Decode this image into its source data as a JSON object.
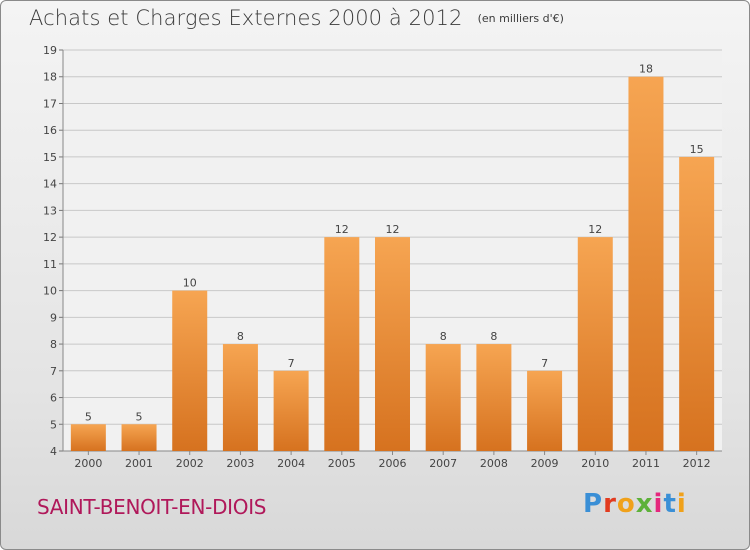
{
  "header": {
    "title": "Achats et Charges Externes 2000 à 2012",
    "unit": "(en milliers d'€)"
  },
  "footer": {
    "commune": "SAINT-BENOIT-EN-DIOIS",
    "brand": "Proxiti"
  },
  "colors": {
    "bar_top": "#f6a552",
    "bar_bottom": "#d6721f",
    "grid": "#c8c8c8",
    "axis_text": "#444444",
    "commune": "#b0185a"
  },
  "chart_data": {
    "type": "bar",
    "title": "Achats et Charges Externes 2000 à 2012",
    "subtitle": "(en milliers d'€)",
    "categories": [
      "2000",
      "2001",
      "2002",
      "2003",
      "2004",
      "2005",
      "2006",
      "2007",
      "2008",
      "2009",
      "2010",
      "2011",
      "2012"
    ],
    "values": [
      5,
      5,
      10,
      8,
      7,
      12,
      12,
      8,
      8,
      7,
      12,
      18,
      15
    ],
    "ylim": [
      4,
      19
    ],
    "yticks": [
      4,
      5,
      6,
      7,
      8,
      9,
      10,
      11,
      12,
      13,
      14,
      15,
      16,
      17,
      18,
      19
    ],
    "grid": true,
    "data_labels": true
  }
}
